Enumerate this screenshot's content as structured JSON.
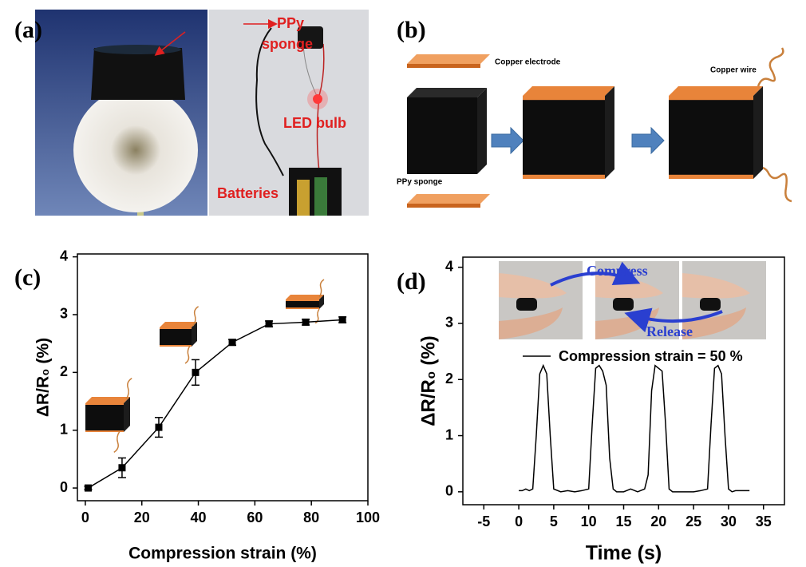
{
  "panels": [
    {
      "label": "(a)",
      "sponge_label": [
        "PPy",
        "sponge"
      ],
      "led_label": "LED bulb",
      "battery_label": "Batteries"
    },
    {
      "label": "(b)",
      "electrode_label": "Copper electrode",
      "wire_label": "Copper wire",
      "sponge_label": "PPy sponge"
    },
    {
      "label": "(c)"
    },
    {
      "label": "(d)",
      "compress_label": "Compress",
      "release_label": "Release"
    }
  ],
  "chart_data": [
    {
      "type": "line",
      "x_label": "Compression strain (%)",
      "y_label": "ΔR/R₀ (%)",
      "x": [
        1,
        13,
        26,
        39,
        52,
        65,
        78,
        91
      ],
      "values": [
        0,
        0.35,
        1.05,
        2.0,
        2.52,
        2.84,
        2.87,
        2.91
      ],
      "errors": [
        0.03,
        0.17,
        0.17,
        0.22,
        0.05,
        0.05,
        0.05,
        0.05
      ],
      "color": "#000000",
      "xlim": [
        -2.8,
        100
      ],
      "xticks": [
        0,
        20,
        40,
        60,
        80,
        100
      ],
      "ylim": [
        -0.22,
        4.05
      ],
      "yticks": [
        0,
        1,
        2,
        3,
        4
      ]
    },
    {
      "type": "line",
      "x_label": "Time (s)",
      "y_label": "ΔR/R₀ (%)",
      "x": [
        0,
        0.5,
        1,
        1.5,
        2,
        2.5,
        3,
        3.5,
        4,
        4.5,
        5,
        6,
        7,
        8,
        9,
        10,
        10.5,
        11,
        11.5,
        12,
        12.5,
        13,
        13.5,
        14,
        15,
        16,
        17,
        18,
        18.5,
        19,
        19.5,
        20,
        20.5,
        21,
        21.5,
        22,
        23,
        24,
        25,
        26,
        27,
        27.5,
        28,
        28.5,
        29,
        29.5,
        30,
        30.5,
        31,
        32,
        33
      ],
      "series": [
        {
          "name": "Compression strain = 50 %",
          "color": "#000000",
          "values": [
            0.02,
            0.02,
            0.05,
            0.02,
            0.05,
            1.0,
            2.1,
            2.25,
            2.1,
            1.0,
            0.05,
            0,
            0.02,
            0,
            0.02,
            0.05,
            1.2,
            2.2,
            2.25,
            2.15,
            1.9,
            0.6,
            0.05,
            0,
            0,
            0.05,
            0,
            0.05,
            0.3,
            1.8,
            2.25,
            2.2,
            2.15,
            1.2,
            0.05,
            0,
            0,
            0,
            0,
            0.02,
            0.05,
            1.2,
            2.2,
            2.25,
            2.1,
            1.0,
            0.05,
            0,
            0.02,
            0.02,
            0.02
          ]
        }
      ],
      "xlim": [
        -8,
        38
      ],
      "xticks": [
        -5,
        0,
        5,
        10,
        15,
        20,
        25,
        30,
        35
      ],
      "ylim": [
        -0.23,
        4.18
      ],
      "yticks": [
        0,
        1,
        2,
        3,
        4
      ]
    }
  ]
}
